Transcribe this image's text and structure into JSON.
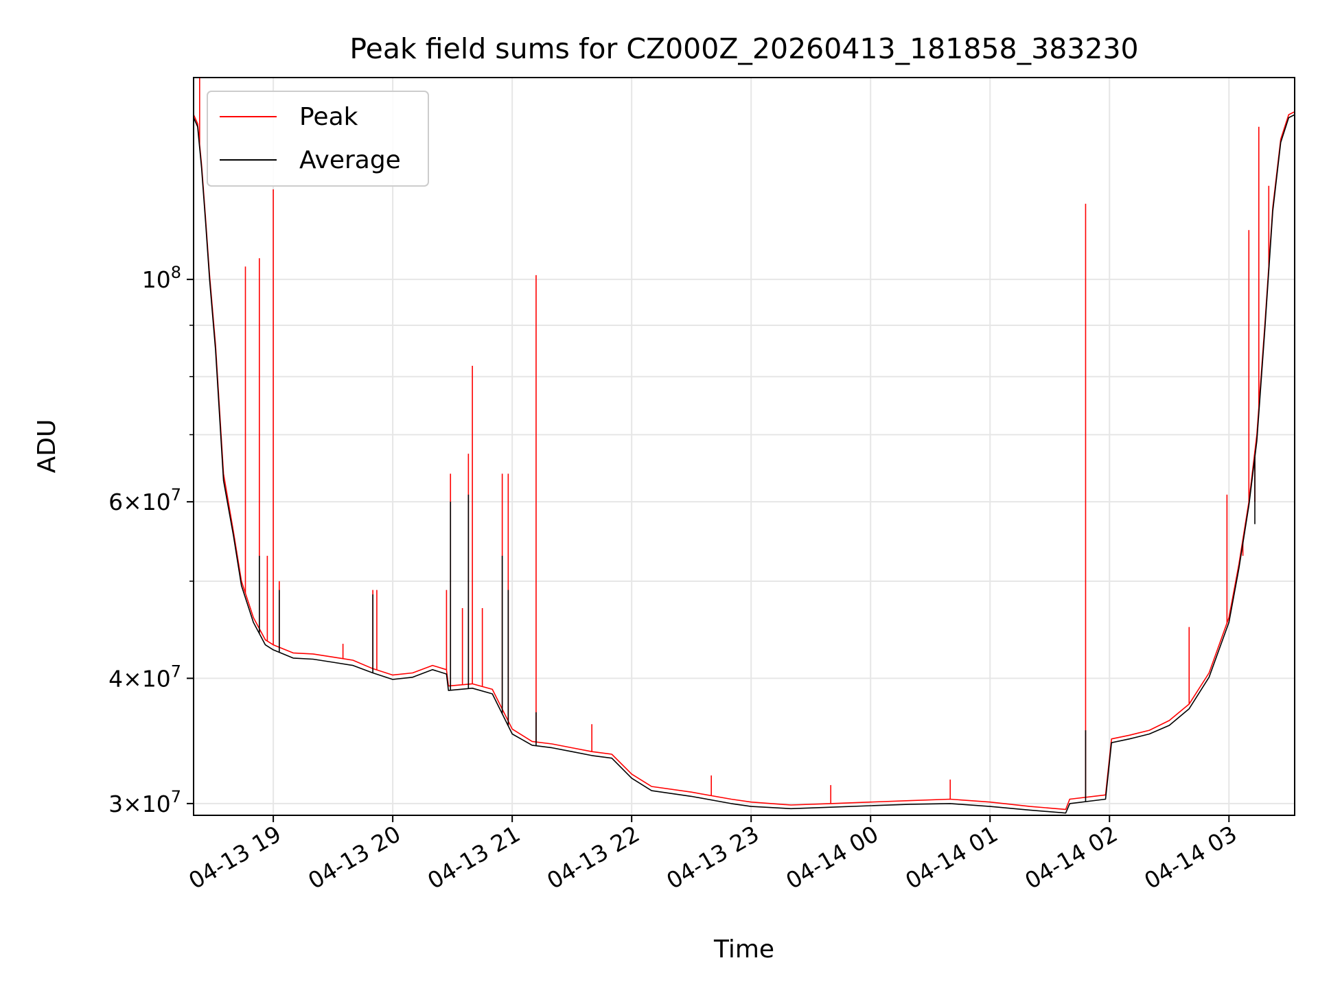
{
  "chart_data": {
    "type": "line",
    "title": "Peak field sums for CZ000Z_20260413_181858_383230",
    "xlabel": "Time",
    "ylabel": "ADU",
    "yscale": "log",
    "xlim": [
      "2026-04-13 18:19:58",
      "2026-04-14 03:33:00"
    ],
    "ylim": [
      29200000,
      159000000
    ],
    "grid": true,
    "legend": "upper-left",
    "x_ticks": [
      {
        "t": "2026-04-13 19:00",
        "label": "04-13 19"
      },
      {
        "t": "2026-04-13 20:00",
        "label": "04-13 20"
      },
      {
        "t": "2026-04-13 21:00",
        "label": "04-13 21"
      },
      {
        "t": "2026-04-13 22:00",
        "label": "04-13 22"
      },
      {
        "t": "2026-04-13 23:00",
        "label": "04-13 23"
      },
      {
        "t": "2026-04-14 00:00",
        "label": "04-14 00"
      },
      {
        "t": "2026-04-14 01:00",
        "label": "04-14 01"
      },
      {
        "t": "2026-04-14 02:00",
        "label": "04-14 02"
      },
      {
        "t": "2026-04-14 03:00",
        "label": "04-14 03"
      }
    ],
    "y_ticks": [
      {
        "value": 30000000,
        "base": "3×10",
        "exp": "7"
      },
      {
        "value": 40000000,
        "base": "4×10",
        "exp": "7"
      },
      {
        "value": 60000000,
        "base": "6×10",
        "exp": "7"
      },
      {
        "value": 100000000,
        "base": "10",
        "exp": "8"
      }
    ],
    "y_minor_ticks": [
      50000000,
      70000000,
      80000000,
      90000000
    ],
    "series": [
      {
        "name": "Peak",
        "color": "#ff0000",
        "points": [
          [
            "2026-04-13 18:20",
            146000000
          ],
          [
            "2026-04-13 18:22",
            143000000
          ],
          [
            "2026-04-13 18:24",
            130000000
          ],
          [
            "2026-04-13 18:26",
            115000000
          ],
          [
            "2026-04-13 18:28",
            101000000
          ],
          [
            "2026-04-13 18:31",
            86000000
          ],
          [
            "2026-04-13 18:35",
            64000000
          ],
          [
            "2026-04-13 18:40",
            56000000
          ],
          [
            "2026-04-13 18:44",
            50000000
          ],
          [
            "2026-04-13 18:50",
            46000000
          ],
          [
            "2026-04-13 18:56",
            43700000
          ],
          [
            "2026-04-13 19:00",
            43200000
          ],
          [
            "2026-04-13 19:10",
            42400000
          ],
          [
            "2026-04-13 19:20",
            42300000
          ],
          [
            "2026-04-13 19:30",
            42000000
          ],
          [
            "2026-04-13 19:40",
            41700000
          ],
          [
            "2026-04-13 19:50",
            40900000
          ],
          [
            "2026-04-13 20:00",
            40300000
          ],
          [
            "2026-04-13 20:10",
            40500000
          ],
          [
            "2026-04-13 20:20",
            41200000
          ],
          [
            "2026-04-13 20:27",
            40800000
          ],
          [
            "2026-04-13 20:28",
            39300000
          ],
          [
            "2026-04-13 20:40",
            39500000
          ],
          [
            "2026-04-13 20:50",
            39000000
          ],
          [
            "2026-04-13 21:00",
            35600000
          ],
          [
            "2026-04-13 21:10",
            34600000
          ],
          [
            "2026-04-13 21:20",
            34400000
          ],
          [
            "2026-04-13 21:30",
            34100000
          ],
          [
            "2026-04-13 21:40",
            33800000
          ],
          [
            "2026-04-13 21:50",
            33600000
          ],
          [
            "2026-04-13 22:00",
            32100000
          ],
          [
            "2026-04-13 22:10",
            31200000
          ],
          [
            "2026-04-13 22:30",
            30800000
          ],
          [
            "2026-04-13 22:50",
            30300000
          ],
          [
            "2026-04-13 23:00",
            30100000
          ],
          [
            "2026-04-13 23:20",
            29900000
          ],
          [
            "2026-04-13 23:40",
            30000000
          ],
          [
            "2026-04-14 00:00",
            30100000
          ],
          [
            "2026-04-14 00:20",
            30200000
          ],
          [
            "2026-04-14 00:40",
            30300000
          ],
          [
            "2026-04-14 01:00",
            30100000
          ],
          [
            "2026-04-14 01:20",
            29800000
          ],
          [
            "2026-04-14 01:38",
            29600000
          ],
          [
            "2026-04-14 01:40",
            30300000
          ],
          [
            "2026-04-14 01:58",
            30600000
          ],
          [
            "2026-04-14 02:01",
            34800000
          ],
          [
            "2026-04-14 02:10",
            35100000
          ],
          [
            "2026-04-14 02:20",
            35500000
          ],
          [
            "2026-04-14 02:30",
            36300000
          ],
          [
            "2026-04-14 02:40",
            37700000
          ],
          [
            "2026-04-14 02:50",
            40500000
          ],
          [
            "2026-04-14 03:00",
            46000000
          ],
          [
            "2026-04-14 03:05",
            52000000
          ],
          [
            "2026-04-14 03:10",
            60000000
          ],
          [
            "2026-04-14 03:14",
            70000000
          ],
          [
            "2026-04-14 03:18",
            90000000
          ],
          [
            "2026-04-14 03:22",
            118000000
          ],
          [
            "2026-04-14 03:26",
            138000000
          ],
          [
            "2026-04-14 03:30",
            146000000
          ],
          [
            "2026-04-14 03:33",
            147000000
          ]
        ],
        "spikes": [
          [
            "2026-04-13 18:23",
            159000000
          ],
          [
            "2026-04-13 18:46",
            103000000
          ],
          [
            "2026-04-13 18:53",
            105000000
          ],
          [
            "2026-04-13 18:57",
            53000000
          ],
          [
            "2026-04-13 19:00",
            123000000
          ],
          [
            "2026-04-13 19:03",
            50000000
          ],
          [
            "2026-04-13 19:35",
            43300000
          ],
          [
            "2026-04-13 19:50",
            49000000
          ],
          [
            "2026-04-13 19:52",
            49000000
          ],
          [
            "2026-04-13 20:27",
            49000000
          ],
          [
            "2026-04-13 20:29",
            64000000
          ],
          [
            "2026-04-13 20:35",
            47000000
          ],
          [
            "2026-04-13 20:38",
            67000000
          ],
          [
            "2026-04-13 20:40",
            82000000
          ],
          [
            "2026-04-13 20:45",
            47000000
          ],
          [
            "2026-04-13 20:55",
            64000000
          ],
          [
            "2026-04-13 20:58",
            64000000
          ],
          [
            "2026-04-13 21:12",
            101000000
          ],
          [
            "2026-04-13 21:40",
            36000000
          ],
          [
            "2026-04-13 22:40",
            32000000
          ],
          [
            "2026-04-13 23:40",
            31300000
          ],
          [
            "2026-04-14 00:40",
            31700000
          ],
          [
            "2026-04-14 01:48",
            119000000
          ],
          [
            "2026-04-14 02:40",
            45000000
          ],
          [
            "2026-04-14 02:59",
            61000000
          ],
          [
            "2026-04-14 03:07",
            53000000
          ],
          [
            "2026-04-14 03:10",
            112000000
          ],
          [
            "2026-04-14 03:13",
            60000000
          ],
          [
            "2026-04-14 03:15",
            142000000
          ],
          [
            "2026-04-14 03:20",
            124000000
          ]
        ]
      },
      {
        "name": "Average",
        "color": "#000000",
        "points": [
          [
            "2026-04-13 18:20",
            145000000
          ],
          [
            "2026-04-13 18:22",
            142000000
          ],
          [
            "2026-04-13 18:24",
            129000000
          ],
          [
            "2026-04-13 18:26",
            114000000
          ],
          [
            "2026-04-13 18:28",
            100000000
          ],
          [
            "2026-04-13 18:31",
            85000000
          ],
          [
            "2026-04-13 18:35",
            63000000
          ],
          [
            "2026-04-13 18:40",
            55500000
          ],
          [
            "2026-04-13 18:44",
            49500000
          ],
          [
            "2026-04-13 18:50",
            45500000
          ],
          [
            "2026-04-13 18:56",
            43200000
          ],
          [
            "2026-04-13 19:00",
            42700000
          ],
          [
            "2026-04-13 19:10",
            41900000
          ],
          [
            "2026-04-13 19:20",
            41800000
          ],
          [
            "2026-04-13 19:30",
            41500000
          ],
          [
            "2026-04-13 19:40",
            41200000
          ],
          [
            "2026-04-13 19:50",
            40500000
          ],
          [
            "2026-04-13 20:00",
            39900000
          ],
          [
            "2026-04-13 20:10",
            40100000
          ],
          [
            "2026-04-13 20:20",
            40800000
          ],
          [
            "2026-04-13 20:27",
            40400000
          ],
          [
            "2026-04-13 20:28",
            38900000
          ],
          [
            "2026-04-13 20:40",
            39100000
          ],
          [
            "2026-04-13 20:50",
            38600000
          ],
          [
            "2026-04-13 21:00",
            35200000
          ],
          [
            "2026-04-13 21:10",
            34300000
          ],
          [
            "2026-04-13 21:20",
            34100000
          ],
          [
            "2026-04-13 21:30",
            33800000
          ],
          [
            "2026-04-13 21:40",
            33500000
          ],
          [
            "2026-04-13 21:50",
            33300000
          ],
          [
            "2026-04-13 22:00",
            31800000
          ],
          [
            "2026-04-13 22:10",
            30900000
          ],
          [
            "2026-04-13 22:30",
            30500000
          ],
          [
            "2026-04-13 22:50",
            30000000
          ],
          [
            "2026-04-13 23:00",
            29800000
          ],
          [
            "2026-04-13 23:20",
            29650000
          ],
          [
            "2026-04-13 23:40",
            29750000
          ],
          [
            "2026-04-14 00:00",
            29850000
          ],
          [
            "2026-04-14 00:20",
            29950000
          ],
          [
            "2026-04-14 00:40",
            30000000
          ],
          [
            "2026-04-14 01:00",
            29800000
          ],
          [
            "2026-04-14 01:20",
            29550000
          ],
          [
            "2026-04-14 01:38",
            29350000
          ],
          [
            "2026-04-14 01:40",
            30000000
          ],
          [
            "2026-04-14 01:58",
            30300000
          ],
          [
            "2026-04-14 02:01",
            34500000
          ],
          [
            "2026-04-14 02:10",
            34800000
          ],
          [
            "2026-04-14 02:20",
            35200000
          ],
          [
            "2026-04-14 02:30",
            35900000
          ],
          [
            "2026-04-14 02:40",
            37300000
          ],
          [
            "2026-04-14 02:50",
            40100000
          ],
          [
            "2026-04-14 03:00",
            45500000
          ],
          [
            "2026-04-14 03:05",
            51500000
          ],
          [
            "2026-04-14 03:10",
            59500000
          ],
          [
            "2026-04-14 03:14",
            69000000
          ],
          [
            "2026-04-14 03:18",
            89000000
          ],
          [
            "2026-04-14 03:22",
            117000000
          ],
          [
            "2026-04-14 03:26",
            137000000
          ],
          [
            "2026-04-14 03:30",
            145000000
          ],
          [
            "2026-04-14 03:33",
            146000000
          ]
        ],
        "spikes": [
          [
            "2026-04-13 18:53",
            53000000
          ],
          [
            "2026-04-13 19:03",
            49000000
          ],
          [
            "2026-04-13 19:50",
            48500000
          ],
          [
            "2026-04-13 20:29",
            60000000
          ],
          [
            "2026-04-13 20:38",
            61000000
          ],
          [
            "2026-04-13 20:55",
            53000000
          ],
          [
            "2026-04-13 20:58",
            49000000
          ],
          [
            "2026-04-13 21:12",
            37000000
          ],
          [
            "2026-04-14 01:48",
            35500000
          ],
          [
            "2026-04-14 03:13",
            57000000
          ]
        ]
      }
    ]
  }
}
